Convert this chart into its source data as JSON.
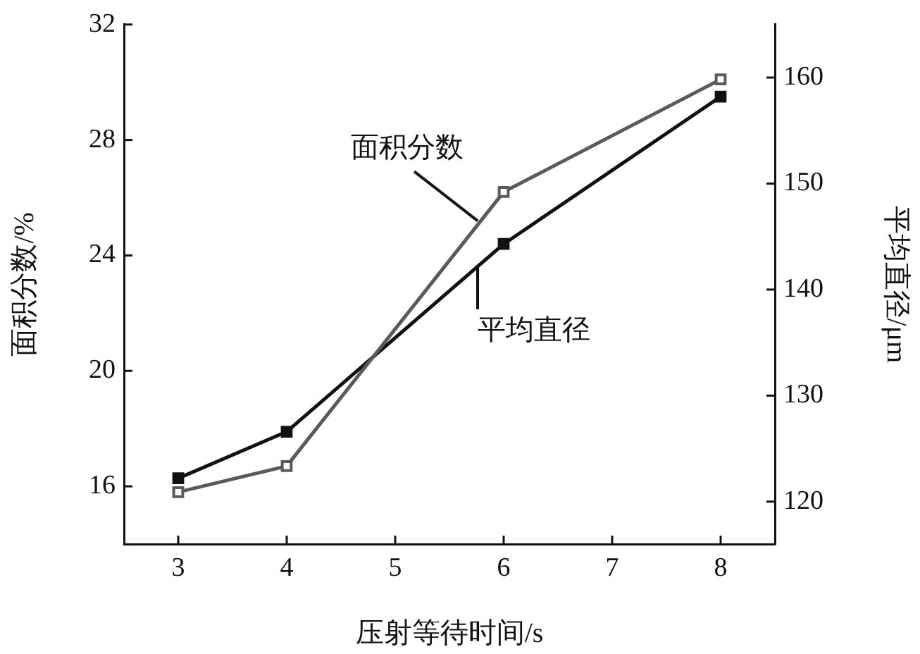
{
  "chart_data": {
    "type": "line",
    "xlabel": "压射等待时间/s",
    "ylabel": "面积分数/%",
    "y2label": "平均直径/μm",
    "x": [
      3,
      4,
      6,
      8
    ],
    "series": [
      {
        "color": "#5a5a5a",
        "values": [
          15.8,
          16.7,
          26.2,
          30.1
        ]
      },
      {
        "color": "#111111",
        "axis": "y2",
        "values": [
          122.2,
          126.6,
          144.3,
          158.2
        ]
      }
    ],
    "xlim": [
      2.5,
      8.5
    ],
    "xticks": [
      3,
      4,
      5,
      6,
      7,
      8
    ],
    "ylim": [
      14,
      32
    ],
    "yticks": [
      16,
      20,
      24,
      28,
      32
    ],
    "y2lim": [
      116,
      165
    ],
    "y2ticks": [
      120,
      130,
      140,
      150,
      160
    ],
    "annotations": [
      {
        "text": "面积分数",
        "x": 5.76,
        "y": 25.2
      },
      {
        "text": "平均直径",
        "x": 5.76,
        "y": 23.6
      }
    ],
    "marker": "square",
    "line_style": "solid",
    "grid": false,
    "legend": false
  }
}
